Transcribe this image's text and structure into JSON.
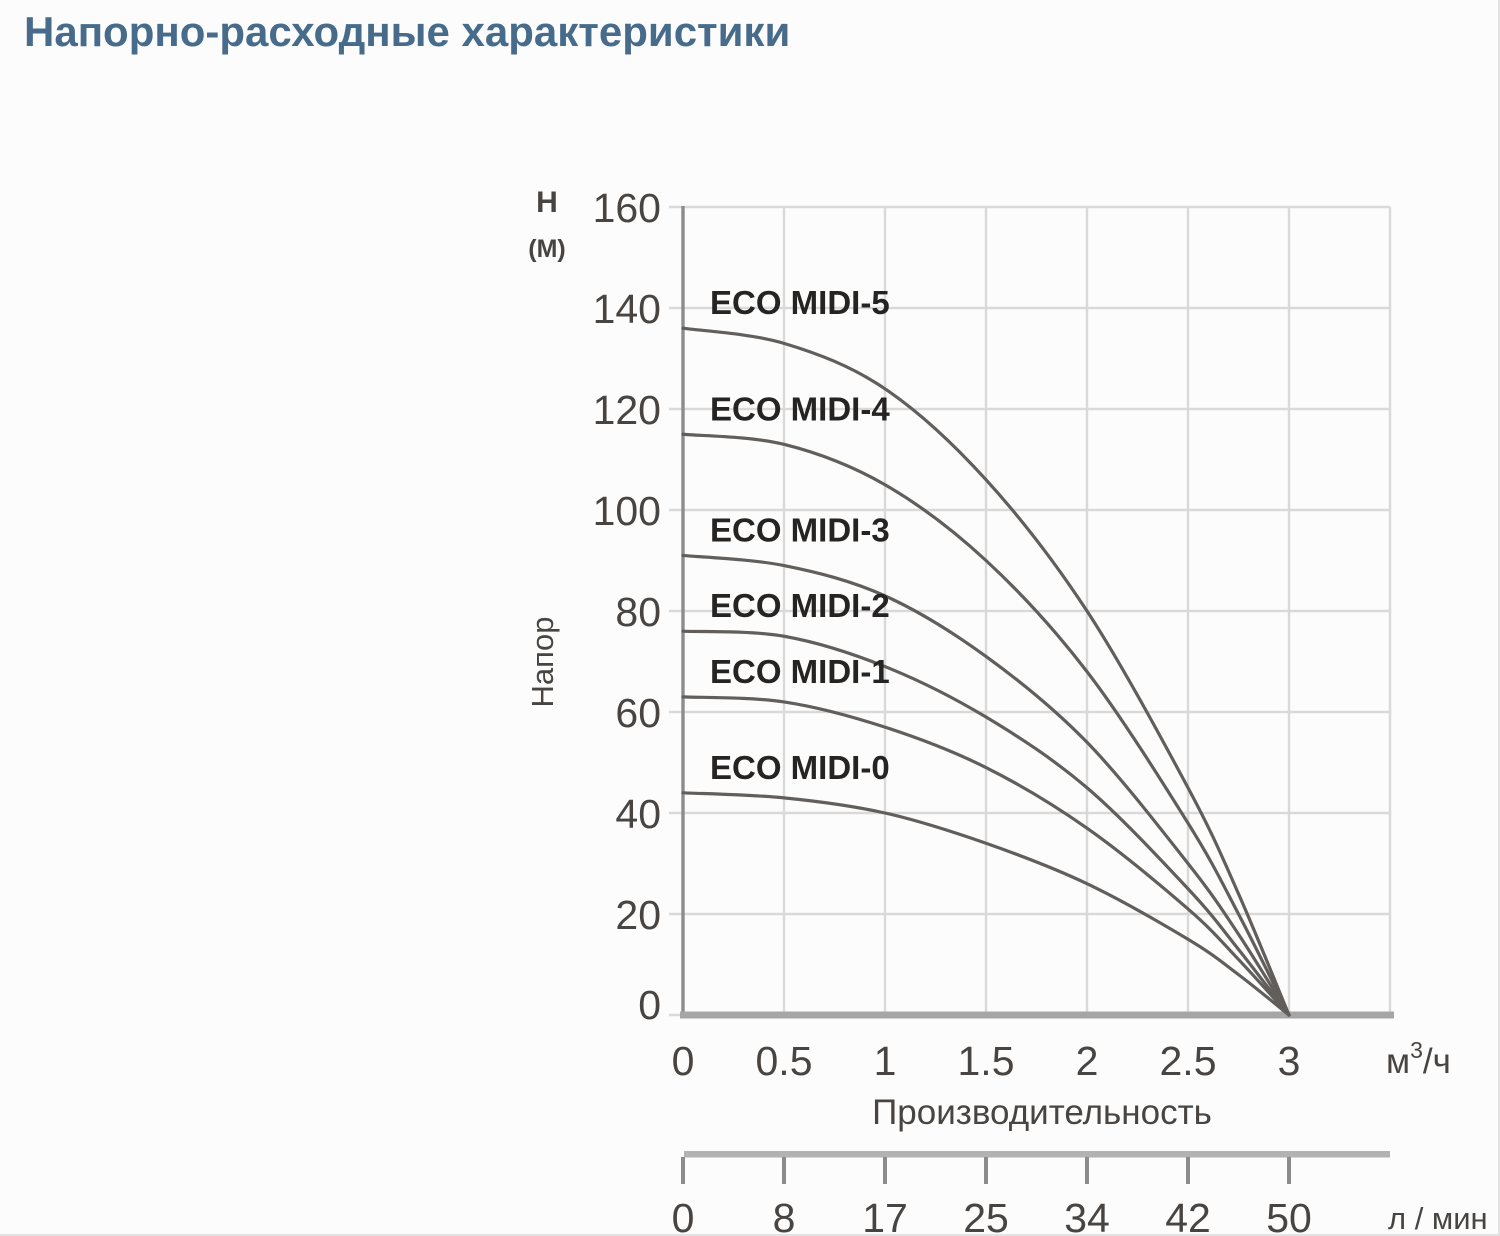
{
  "page": {
    "title": "Напорно-расходные характеристики",
    "title_color": "#466b8b",
    "background_color": "#fcfcfc"
  },
  "chart_data": {
    "type": "line",
    "title": "Напорно-расходные характеристики",
    "x": [
      0,
      0.5,
      1,
      1.5,
      2,
      2.5,
      2.75,
      3
    ],
    "series": [
      {
        "name": "ECO MIDI-5",
        "values": [
          136,
          133,
          124,
          106,
          80,
          45,
          24,
          0
        ]
      },
      {
        "name": "ECO MIDI-4",
        "values": [
          115,
          113,
          105,
          90,
          68,
          38,
          20,
          0
        ]
      },
      {
        "name": "ECO MIDI-3",
        "values": [
          91,
          89,
          83,
          71,
          54,
          30,
          16,
          0
        ]
      },
      {
        "name": "ECO MIDI-2",
        "values": [
          76,
          75,
          69,
          59,
          45,
          25,
          13,
          0
        ]
      },
      {
        "name": "ECO MIDI-1",
        "values": [
          63,
          62,
          57,
          49,
          37,
          21,
          11,
          0
        ]
      },
      {
        "name": "ECO MIDI-0",
        "values": [
          44,
          43,
          40,
          34,
          26,
          15,
          8,
          0
        ]
      }
    ],
    "xlabel": "Производительность",
    "x_unit": {
      "base": "м",
      "sup": "3",
      "rest": "/ч"
    },
    "x_tick_values": [
      0,
      0.5,
      1,
      1.5,
      2,
      2.5,
      3
    ],
    "x_tick_labels": [
      "0",
      "0.5",
      "1",
      "1.5",
      "2",
      "2.5",
      "3"
    ],
    "y_axis": {
      "symbol": "H",
      "unit": "(M)",
      "label": "Напор",
      "ticks": [
        0,
        20,
        40,
        60,
        80,
        100,
        120,
        140,
        160
      ]
    },
    "ylim": [
      0,
      160
    ],
    "xlim": [
      0,
      3.5
    ],
    "grid": true,
    "legend_position": "inline-labels",
    "secondary_x_axis": {
      "tick_labels": [
        "0",
        "8",
        "17",
        "25",
        "34",
        "42",
        "50"
      ],
      "unit": "л / мин"
    },
    "colors": {
      "curve": "#615e5b",
      "grid": "#d9d9d9",
      "axis_left": "#8c8c8c",
      "axis_bottom": "#a6a6a6",
      "bar": "#b2b2b2",
      "tick_text": "#474441",
      "series_label": "#262422"
    }
  }
}
